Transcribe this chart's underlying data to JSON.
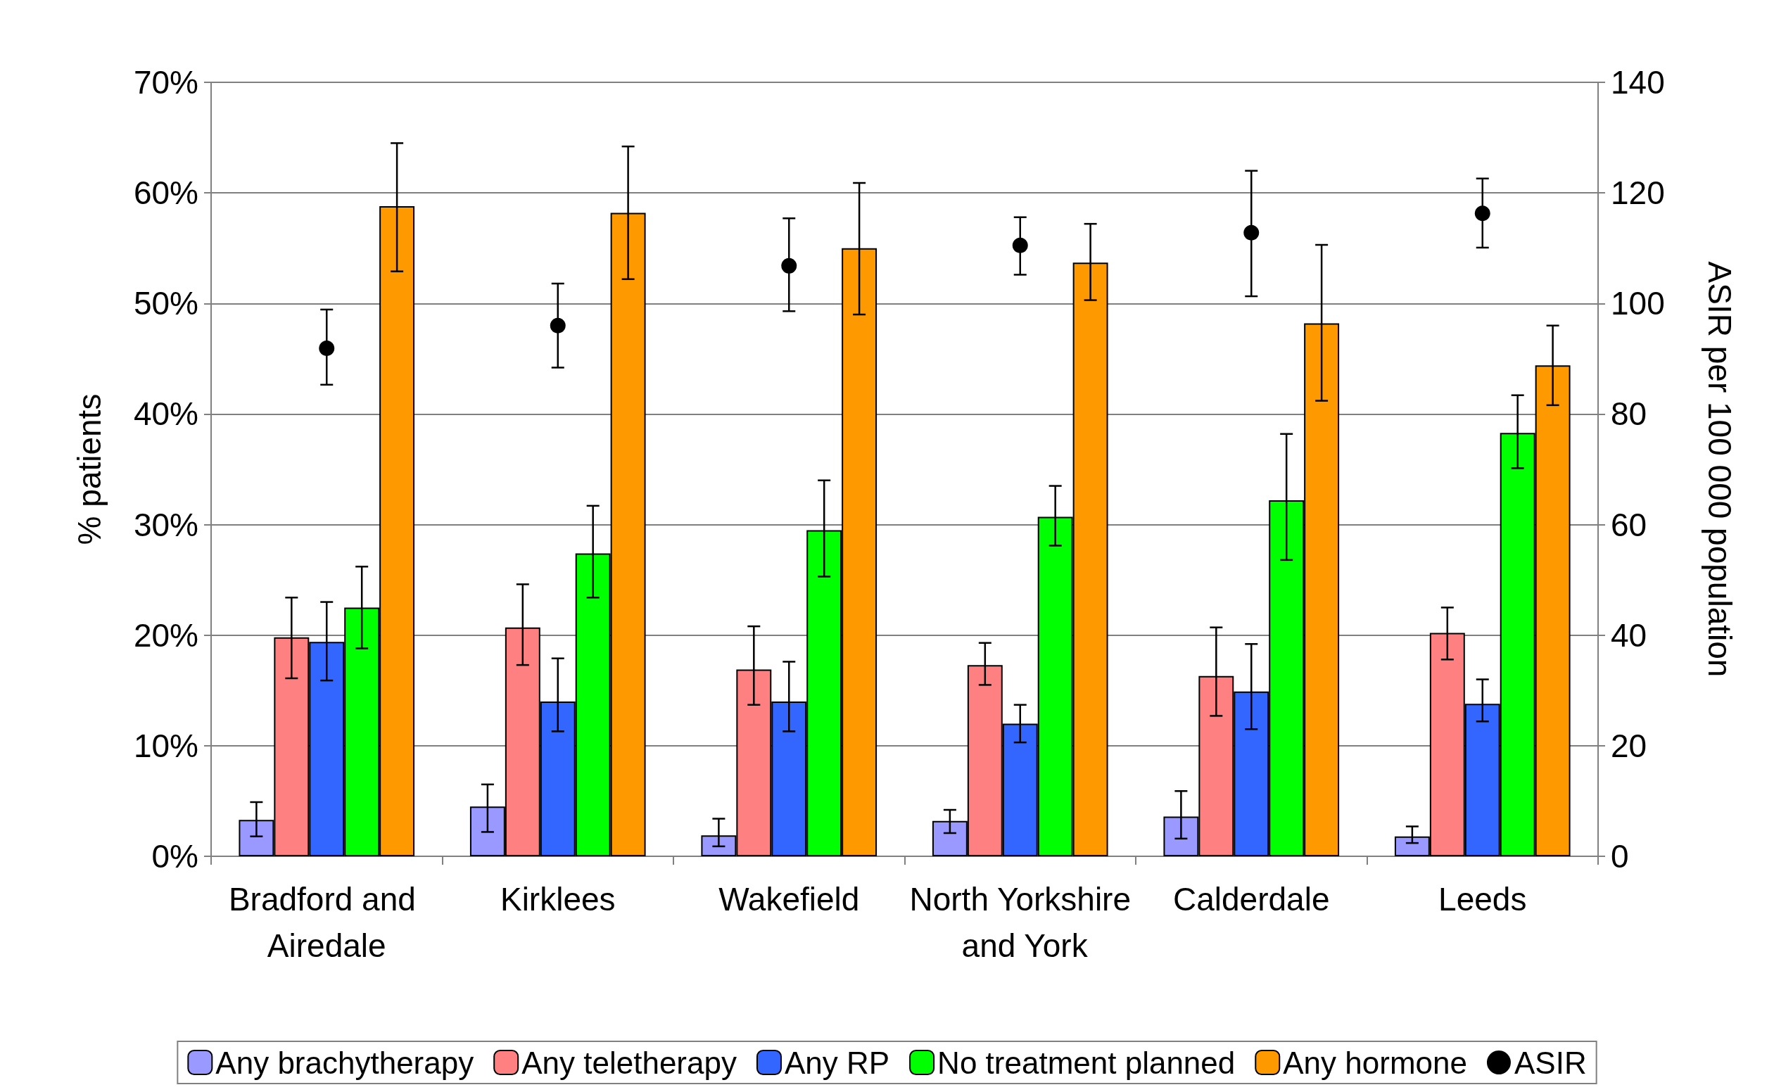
{
  "chart_data": {
    "type": "bar",
    "ylabel": "% patients",
    "y2label": "ASIR per 100 000 population",
    "categories": [
      "Bradford and Airedale",
      "Kirklees",
      "Wakefield",
      "North Yorkshire and York",
      "Calderdale",
      "Leeds"
    ],
    "series": [
      {
        "name": "Any brachytherapy",
        "color": "#9999ff",
        "values": [
          3.3,
          4.5,
          1.9,
          3.2,
          3.6,
          1.8
        ],
        "errors": [
          [
            1.8,
            4.9
          ],
          [
            2.2,
            6.5
          ],
          [
            0.9,
            3.4
          ],
          [
            2.1,
            4.2
          ],
          [
            1.6,
            5.9
          ],
          [
            1.2,
            2.7
          ]
        ]
      },
      {
        "name": "Any teletherapy",
        "color": "#ff8080",
        "values": [
          19.8,
          20.7,
          16.9,
          17.3,
          16.3,
          20.2
        ],
        "errors": [
          [
            16.1,
            23.4
          ],
          [
            17.3,
            24.6
          ],
          [
            13.7,
            20.8
          ],
          [
            15.5,
            19.3
          ],
          [
            12.7,
            20.7
          ],
          [
            17.8,
            22.5
          ]
        ]
      },
      {
        "name": "Any RP",
        "color": "#3366ff",
        "values": [
          19.4,
          14.0,
          14.0,
          12.0,
          14.9,
          13.8
        ],
        "errors": [
          [
            15.9,
            23.0
          ],
          [
            11.3,
            17.9
          ],
          [
            11.3,
            17.6
          ],
          [
            10.3,
            13.7
          ],
          [
            11.5,
            19.2
          ],
          [
            12.2,
            16.0
          ]
        ]
      },
      {
        "name": "No treatment planned",
        "color": "#00ff00",
        "values": [
          22.5,
          27.4,
          29.5,
          30.7,
          32.2,
          38.3
        ],
        "errors": [
          [
            18.8,
            26.2
          ],
          [
            23.4,
            31.7
          ],
          [
            25.3,
            34.0
          ],
          [
            28.1,
            33.5
          ],
          [
            26.8,
            38.2
          ],
          [
            35.1,
            41.7
          ]
        ]
      },
      {
        "name": "Any hormone",
        "color": "#ff9900",
        "values": [
          58.8,
          58.2,
          55.0,
          53.7,
          48.2,
          44.4
        ],
        "errors": [
          [
            52.9,
            64.5
          ],
          [
            52.2,
            64.2
          ],
          [
            49.0,
            60.9
          ],
          [
            50.3,
            57.2
          ],
          [
            41.2,
            55.3
          ],
          [
            40.8,
            48.0
          ]
        ]
      },
      {
        "name": "ASIR",
        "type": "scatter",
        "axis": "y2",
        "marker": "circle",
        "color": "#000000",
        "values": [
          91.9,
          96.0,
          106.8,
          110.5,
          112.8,
          116.3
        ],
        "errors": [
          [
            85.3,
            98.9
          ],
          [
            88.4,
            103.6
          ],
          [
            98.6,
            115.4
          ],
          [
            105.2,
            115.6
          ],
          [
            101.3,
            124.0
          ],
          [
            110.1,
            122.6
          ]
        ]
      }
    ],
    "ylim": [
      0,
      70
    ],
    "yticks": [
      {
        "value": 0,
        "label": "0%"
      },
      {
        "value": 10,
        "label": "10%"
      },
      {
        "value": 20,
        "label": "20%"
      },
      {
        "value": 30,
        "label": "30%"
      },
      {
        "value": 40,
        "label": "40%"
      },
      {
        "value": 50,
        "label": "50%"
      },
      {
        "value": 60,
        "label": "60%"
      },
      {
        "value": 70,
        "label": "70%"
      }
    ],
    "y2lim": [
      0,
      140
    ],
    "y2ticks": [
      0,
      20,
      40,
      60,
      80,
      100,
      120,
      140
    ],
    "grid": "y",
    "legend": "bottom"
  }
}
